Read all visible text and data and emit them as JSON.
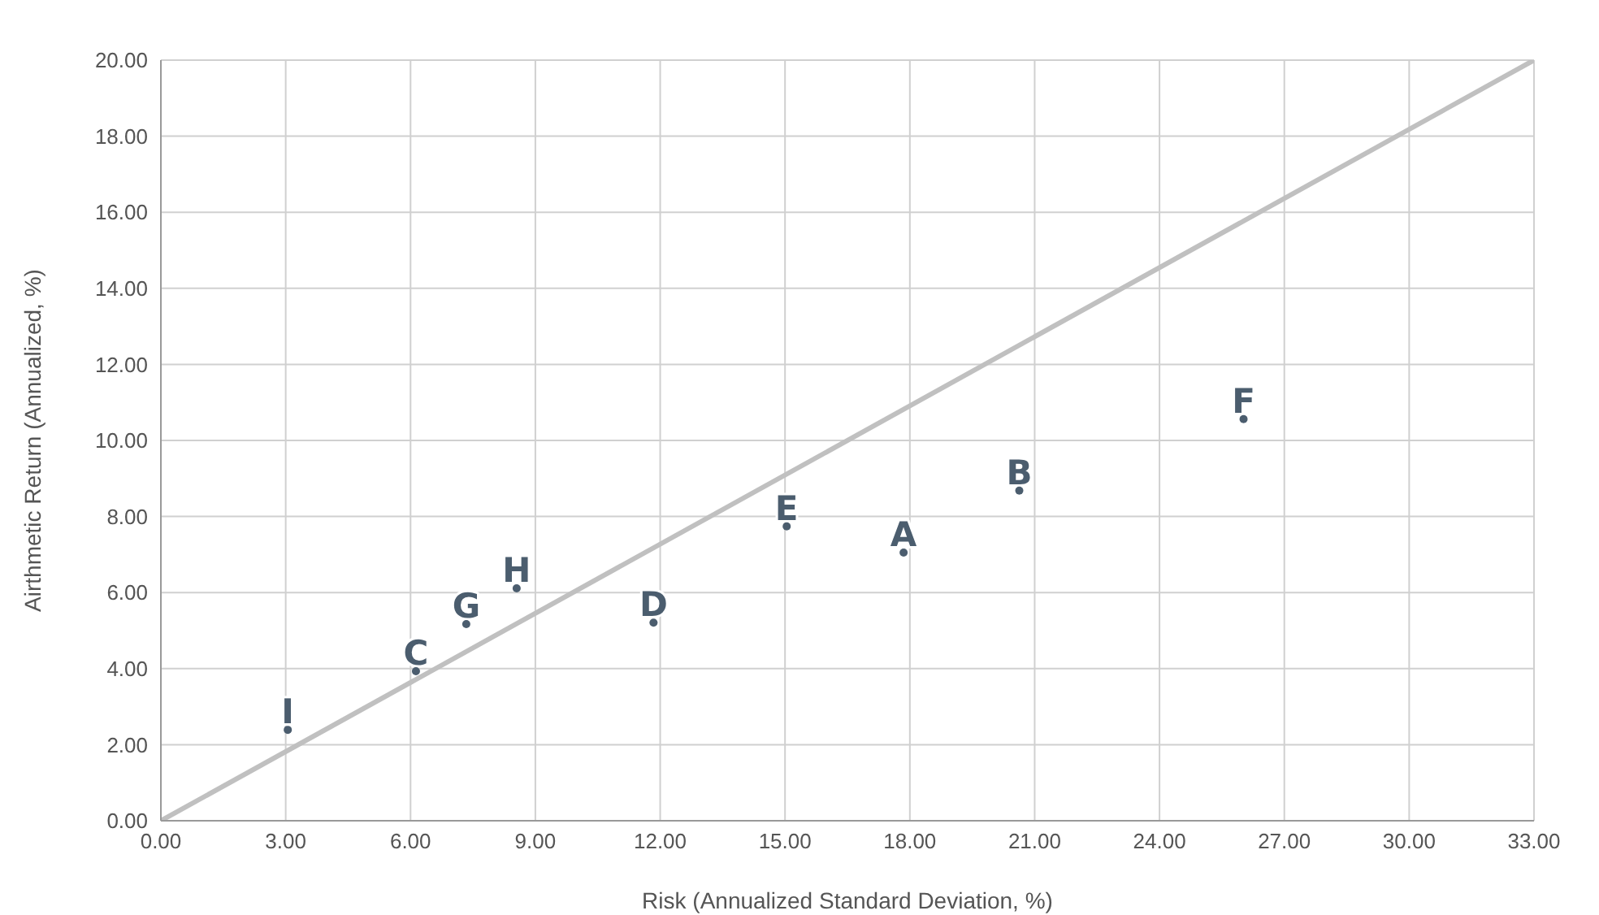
{
  "chart_data": {
    "type": "scatter",
    "xlabel": "Risk (Annualized Standard Deviation, %)",
    "ylabel": "Airthmetic Return (Annualized, %)",
    "xlim": [
      0,
      33
    ],
    "xticks": [
      {
        "value": 0,
        "label": "0.00"
      },
      {
        "value": 3,
        "label": "3.00"
      },
      {
        "value": 6,
        "label": "6.00"
      },
      {
        "value": 9,
        "label": "9.00"
      },
      {
        "value": 12,
        "label": "12.00"
      },
      {
        "value": 15,
        "label": "15.00"
      },
      {
        "value": 18,
        "label": "18.00"
      },
      {
        "value": 21,
        "label": "21.00"
      },
      {
        "value": 24,
        "label": "24.00"
      },
      {
        "value": 27,
        "label": "27.00"
      },
      {
        "value": 30,
        "label": "30.00"
      },
      {
        "value": 33,
        "label": "33.00"
      }
    ],
    "ylim": [
      0,
      20
    ],
    "yticks": [
      {
        "value": 0,
        "label": "0.00"
      },
      {
        "value": 2,
        "label": "2.00"
      },
      {
        "value": 4,
        "label": "4.00"
      },
      {
        "value": 6,
        "label": "6.00"
      },
      {
        "value": 8,
        "label": "8.00"
      },
      {
        "value": 10,
        "label": "10.00"
      },
      {
        "value": 12,
        "label": "12.00"
      },
      {
        "value": 14,
        "label": "14.00"
      },
      {
        "value": 16,
        "label": "16.00"
      },
      {
        "value": 18,
        "label": "18.00"
      },
      {
        "value": 20,
        "label": "20.00"
      }
    ],
    "grid": true,
    "series": [
      {
        "type": "line",
        "x": [
          0,
          33
        ],
        "values": [
          0,
          20
        ],
        "color": "#c0c0c0"
      },
      {
        "name": "A",
        "x": [
          17.85
        ],
        "values": [
          7.05
        ],
        "color": "#4b5d6e"
      },
      {
        "name": "B",
        "x": [
          20.63
        ],
        "values": [
          8.68
        ],
        "color": "#4b5d6e"
      },
      {
        "name": "C",
        "x": [
          6.13
        ],
        "values": [
          3.93
        ],
        "color": "#4b5d6e"
      },
      {
        "name": "D",
        "x": [
          11.84
        ],
        "values": [
          5.21
        ],
        "color": "#4b5d6e"
      },
      {
        "name": "E",
        "x": [
          15.04
        ],
        "values": [
          7.74
        ],
        "color": "#4b5d6e"
      },
      {
        "name": "F",
        "x": [
          26.02
        ],
        "values": [
          10.56
        ],
        "color": "#4b5d6e"
      },
      {
        "name": "G",
        "x": [
          7.34
        ],
        "values": [
          5.17
        ],
        "color": "#4b5d6e"
      },
      {
        "name": "H",
        "x": [
          8.55
        ],
        "values": [
          6.11
        ],
        "color": "#4b5d6e"
      },
      {
        "name": "I",
        "x": [
          3.05
        ],
        "values": [
          2.39
        ],
        "color": "#4b5d6e"
      }
    ]
  }
}
